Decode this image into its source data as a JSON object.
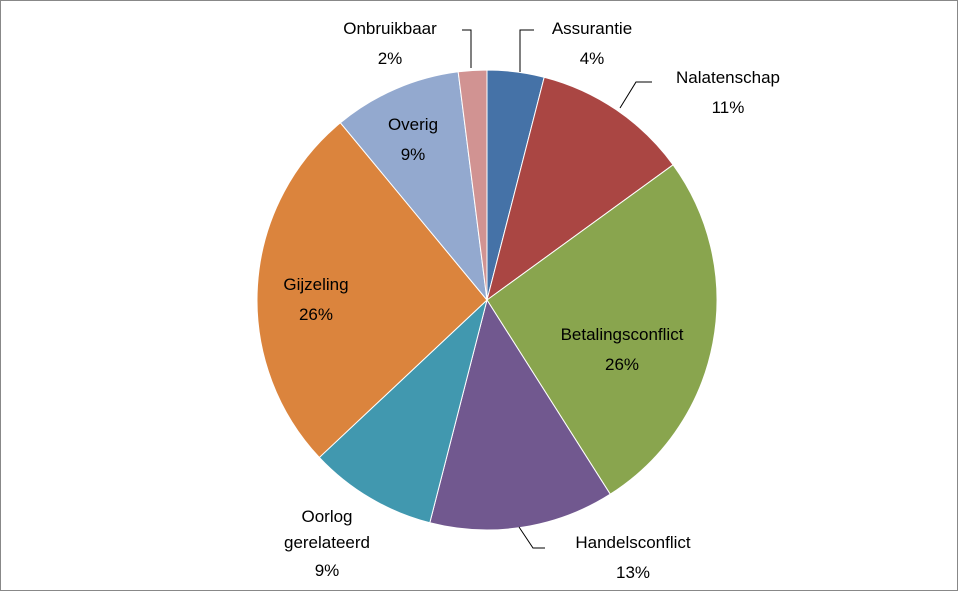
{
  "chart_data": {
    "type": "pie",
    "categories": [
      "Assurantie",
      "Nalatenschap",
      "Betalingsconflict",
      "Handelsconflict",
      "Oorlog gerelateerd",
      "Gijzeling",
      "Overig",
      "Onbruikbaar"
    ],
    "values": [
      4,
      11,
      26,
      13,
      9,
      26,
      9,
      2
    ],
    "value_labels": [
      "4%",
      "11%",
      "26%",
      "13%",
      "9%",
      "26%",
      "9%",
      "2%"
    ],
    "colors": [
      "#4572a7",
      "#aa4643",
      "#89a54e",
      "#71588f",
      "#4198af",
      "#db843d",
      "#93a9cf",
      "#d19392"
    ]
  }
}
